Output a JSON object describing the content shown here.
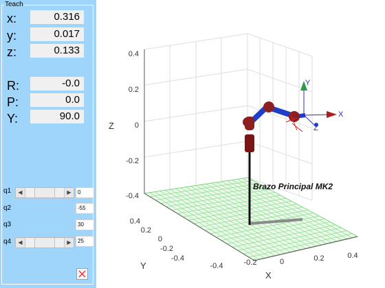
{
  "panel": {
    "title": "Teach",
    "position": [
      {
        "label": "x:",
        "value": "0.316"
      },
      {
        "label": "y:",
        "value": "0.017"
      },
      {
        "label": "z:",
        "value": "0.133"
      }
    ],
    "orientation": [
      {
        "label": "R:",
        "value": "-0.0"
      },
      {
        "label": "P:",
        "value": "0.0"
      },
      {
        "label": "Y:",
        "value": "90.0"
      }
    ],
    "joints": [
      {
        "label": "q1",
        "value": "0",
        "has_slider": true,
        "slider_fraction": 0.5
      },
      {
        "label": "q2",
        "value": "-55",
        "has_slider": false
      },
      {
        "label": "q3",
        "value": "30",
        "has_slider": false
      },
      {
        "label": "q4",
        "value": "25",
        "has_slider": true,
        "slider_fraction": 0.5
      }
    ],
    "close_icon": "close-x-icon"
  },
  "plot": {
    "robot_name": "Brazo Principal MK2",
    "axis_labels": {
      "x": "X",
      "y": "Y",
      "z": "Z"
    },
    "z_ticks": [
      "0.4",
      "0.2",
      "0",
      "-0.2",
      "-0.4"
    ],
    "x_ticks": [
      "-0.4",
      "-0.2",
      "0",
      "0.2",
      "0.4"
    ],
    "y_ticks": [
      "0.4",
      "0.2",
      "0",
      "-0.2",
      "-0.4"
    ],
    "frame_labels": {
      "x": "X",
      "y": "Y",
      "z": "Z"
    },
    "colors": {
      "floor": "#7cd97c",
      "links": "#1f3fc9",
      "joints": "#8c1f1f",
      "pedestal": "#111111",
      "shadow": "#8a8a8a",
      "grid": "#dedede",
      "axes": "#444444"
    }
  }
}
